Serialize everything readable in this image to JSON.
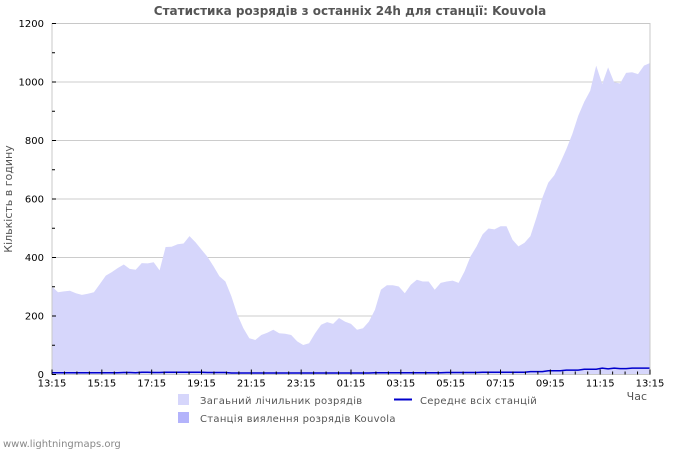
{
  "footer": "www.lightningmaps.org",
  "colors": {
    "total_fill": "#d6d6fb",
    "station_fill": "#b3b3fb",
    "avg_line": "#0000cc",
    "grid": "#cccccc",
    "axis": "#c8c8c8",
    "title": "#555555"
  },
  "chart_data": {
    "type": "area",
    "title": "Статистика розрядів з останніх 24h для станції: Kouvola",
    "xlabel": "Час",
    "ylabel": "Кількість в годину",
    "ylim": [
      0,
      1200
    ],
    "yticks": [
      0,
      200,
      400,
      600,
      800,
      1000,
      1200
    ],
    "xticks": [
      "13:15",
      "15:15",
      "17:15",
      "19:15",
      "21:15",
      "23:15",
      "01:15",
      "03:15",
      "05:15",
      "07:15",
      "09:15",
      "11:15",
      "13:15"
    ],
    "grid": true,
    "legend_position": "bottom",
    "legend": [
      {
        "label": "Загаьний лічильник розрядів",
        "type": "area",
        "color": "#d6d6fb"
      },
      {
        "label": "Середнє всіх станцій",
        "type": "line",
        "color": "#0000cc"
      },
      {
        "label": "Станція виялення розрядів Kouvola",
        "type": "area",
        "color": "#b3b3fb"
      }
    ],
    "x_minutes_step": 12,
    "series": [
      {
        "name": "Загаьний лічильник розрядів",
        "values": [
          301,
          281,
          284,
          286,
          278,
          272,
          276,
          281,
          309,
          338,
          350,
          364,
          376,
          361,
          358,
          381,
          380,
          384,
          356,
          436,
          437,
          445,
          448,
          473,
          452,
          427,
          402,
          370,
          336,
          318,
          267,
          204,
          158,
          124,
          118,
          135,
          143,
          153,
          141,
          139,
          135,
          113,
          101,
          107,
          141,
          170,
          179,
          173,
          193,
          181,
          173,
          153,
          158,
          181,
          221,
          290,
          305,
          305,
          301,
          278,
          307,
          324,
          318,
          318,
          290,
          313,
          318,
          321,
          313,
          353,
          404,
          438,
          479,
          499,
          496,
          507,
          507,
          461,
          438,
          450,
          473,
          536,
          604,
          656,
          681,
          724,
          770,
          822,
          884,
          932,
          970,
          1056,
          993,
          1050,
          999,
          995,
          1031,
          1033,
          1027,
          1056,
          1065
        ]
      },
      {
        "name": "Середнє всіх станцій",
        "values": [
          6,
          6,
          6,
          6,
          6,
          6,
          6,
          6,
          6,
          6,
          6,
          6,
          7,
          7,
          6,
          8,
          8,
          7,
          7,
          8,
          8,
          8,
          8,
          8,
          8,
          8,
          7,
          7,
          7,
          7,
          5,
          5,
          5,
          5,
          5,
          5,
          5,
          5,
          5,
          5,
          5,
          5,
          5,
          5,
          5,
          5,
          5,
          5,
          5,
          5,
          5,
          5,
          5,
          5,
          6,
          6,
          6,
          6,
          6,
          6,
          6,
          6,
          6,
          6,
          6,
          6,
          7,
          7,
          7,
          7,
          7,
          7,
          8,
          8,
          8,
          8,
          8,
          8,
          8,
          8,
          10,
          10,
          10,
          13,
          13,
          13,
          15,
          15,
          15,
          18,
          18,
          18,
          22,
          19,
          22,
          20,
          20,
          22,
          22,
          22,
          22
        ]
      },
      {
        "name": "Станція виялення розрядів Kouvola",
        "values": [
          0,
          0,
          0,
          0,
          0,
          0,
          0,
          0,
          0,
          0,
          0,
          0,
          0,
          0,
          0,
          0,
          0,
          0,
          0,
          0,
          0,
          0,
          0,
          0,
          0,
          0,
          0,
          0,
          0,
          0,
          0,
          0,
          0,
          0,
          0,
          0,
          0,
          0,
          0,
          0,
          0,
          0,
          0,
          0,
          0,
          0,
          0,
          0,
          0,
          0,
          0,
          0,
          0,
          0,
          0,
          0,
          0,
          0,
          0,
          0,
          0,
          0,
          0,
          0,
          0,
          0,
          0,
          0,
          0,
          0,
          0,
          0,
          0,
          0,
          0,
          0,
          0,
          0,
          0,
          0,
          0,
          0,
          0,
          0,
          0,
          0,
          0,
          0,
          0,
          0,
          0,
          0,
          0,
          0,
          0,
          0,
          0,
          0,
          0,
          0,
          0
        ]
      }
    ]
  }
}
